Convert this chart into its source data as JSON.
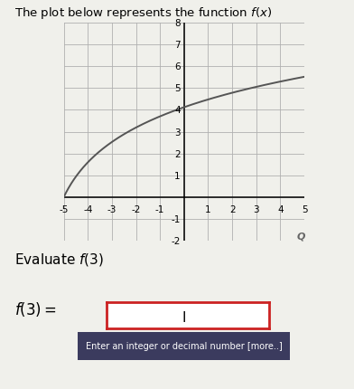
{
  "title": "The plot below represents the function $f(x)$",
  "xlim": [
    -5,
    5
  ],
  "ylim": [
    -2,
    8
  ],
  "xticks": [
    -5,
    -4,
    -3,
    -2,
    -1,
    1,
    2,
    3,
    4,
    5
  ],
  "yticks": [
    -2,
    -1,
    1,
    2,
    3,
    4,
    5,
    6,
    7,
    8
  ],
  "curve_color": "#555555",
  "grid_color": "#b0b0b0",
  "background_color": "#f0f0eb",
  "evaluate_label": "Evaluate $f(3)$",
  "input_label": "$f(3) = $",
  "tooltip": "Enter an integer or decimal number [more..]",
  "log_scale": 2.3,
  "log_shift": 6
}
